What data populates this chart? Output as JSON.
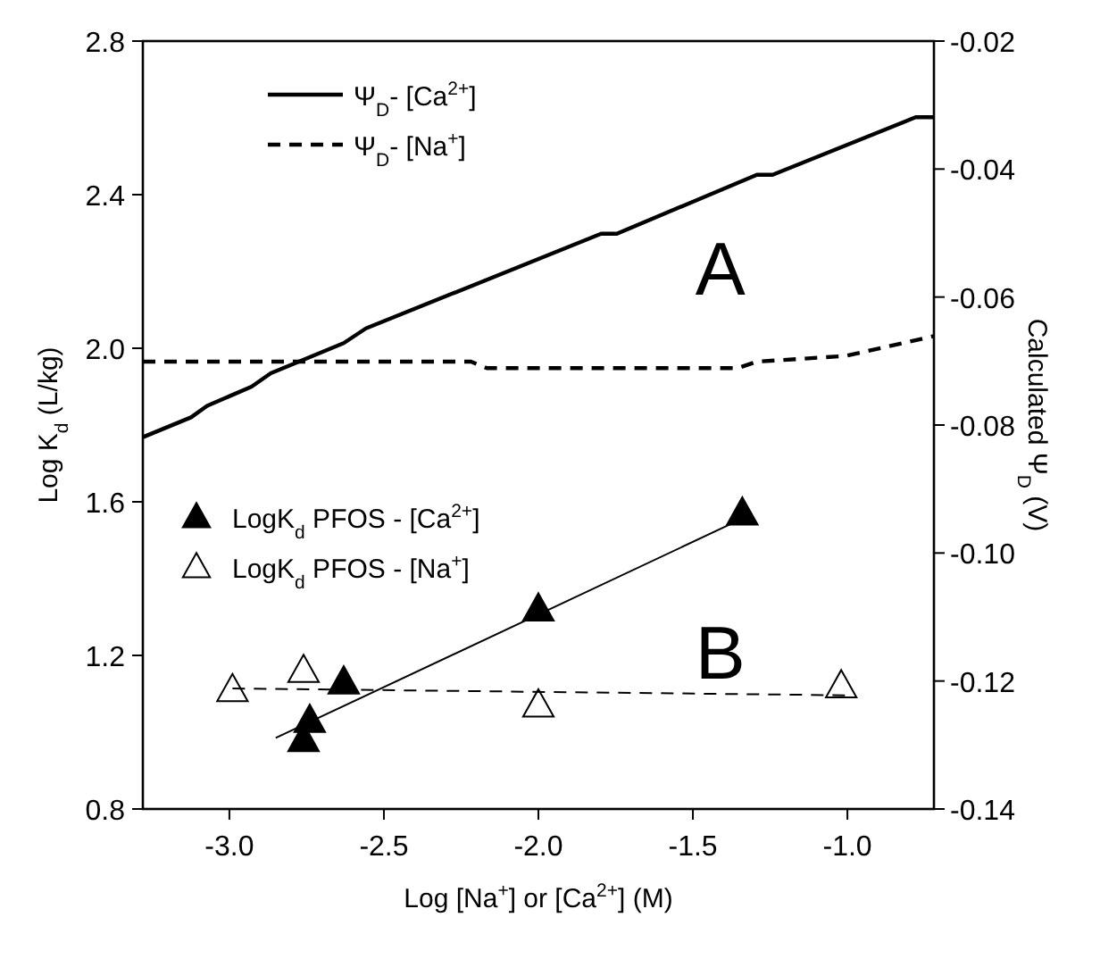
{
  "chart_data": {
    "type": "scatter",
    "xlabel": "Log [Na$^{+}$] or [Ca$^{2+}$] (M)",
    "ylabel": "Log K$_{d}$ (L/kg)",
    "y2label": "Calculated Ψ$_{D}$ (V)",
    "xlim": [
      -3.28,
      -0.72
    ],
    "xticks": [
      {
        "value": -3,
        "label": "-3.0"
      },
      -2.5,
      {
        "value": -2,
        "label": "-2.0"
      },
      -1.5,
      {
        "value": -1,
        "label": "-1.0"
      }
    ],
    "ylim": [
      0.8,
      2.8
    ],
    "yticks": [
      0.8,
      1.2,
      1.6,
      {
        "value": 2,
        "label": "2.0"
      },
      2.4,
      2.8
    ],
    "y2lim": [
      -0.14,
      -0.02
    ],
    "y2ticks": [
      -0.14,
      -0.12,
      {
        "value": -0.1,
        "label": "-0.10"
      },
      -0.08,
      -0.06,
      -0.04,
      -0.02
    ],
    "grid": false,
    "legend": "top left",
    "annotations": [
      "A",
      "B"
    ],
    "series": [
      {
        "name": "Ψ$_{D}$- [Ca$^{2+}$]",
        "type": "line",
        "axis": "y2",
        "color": "#000000",
        "line_style": "solid",
        "marker": "none",
        "x": [
          -3.28,
          -3.124,
          -3.072,
          -2.928,
          -2.866,
          -2.63,
          -2.558,
          -1.797,
          -1.746,
          -1.293,
          -1.242,
          -0.779,
          -0.72
        ],
        "values": [
          -0.0819,
          -0.0788,
          -0.077,
          -0.074,
          -0.0719,
          -0.0672,
          -0.0649,
          -0.0501,
          -0.0501,
          -0.0409,
          -0.0409,
          -0.0319,
          -0.0319
        ]
      },
      {
        "name": "Ψ$_{D}$- [Na$^{+}$]",
        "type": "line",
        "axis": "y2",
        "color": "#000000",
        "line_style": "dashed",
        "marker": "none",
        "x": [
          -3.28,
          -2.218,
          -2.167,
          -1.355,
          -1.293,
          -1.005,
          -0.72
        ],
        "values": [
          -0.0701,
          -0.0701,
          -0.0711,
          -0.0711,
          -0.0701,
          -0.0692,
          -0.0661
        ]
      },
      {
        "name": "LogK$_{d}$ PFOS - [Ca$^{2+}$]",
        "color": "#000000",
        "marker": "triangle",
        "x": [
          -2.76,
          -2.74,
          -2.63,
          -2.0,
          -1.34
        ],
        "values": [
          0.98,
          1.03,
          1.13,
          1.32,
          1.57
        ]
      },
      {
        "name": "LogK$_{d}$ PFOS - [Na$^{+}$]",
        "color": "#ffffff",
        "marker": "triangle",
        "x": [
          -2.99,
          -2.76,
          -2.0,
          -1.02
        ],
        "values": [
          1.11,
          1.16,
          1.07,
          1.12
        ]
      },
      {
        "type": "line",
        "color": "#000000",
        "line_style": "solid",
        "marker": "none",
        "x": [
          -2.85,
          -1.33
        ],
        "values": [
          0.985,
          1.56
        ]
      },
      {
        "type": "line",
        "color": "#000000",
        "line_style": "dashed",
        "marker": "none",
        "x": [
          -2.99,
          -0.99
        ],
        "values": [
          1.114,
          1.096
        ]
      }
    ]
  }
}
